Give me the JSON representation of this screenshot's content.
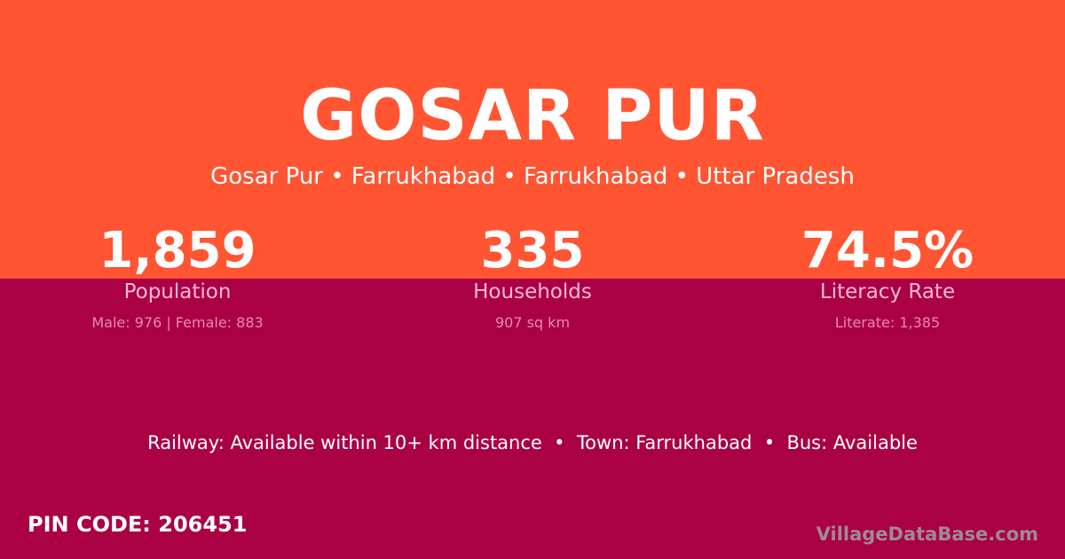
{
  "colors": {
    "top_background": "#FF5533",
    "bottom_background": "#AA0044"
  },
  "title": "GOSAR PUR",
  "breadcrumb": "Gosar Pur • Farrukhabad • Farrukhabad • Uttar Pradesh",
  "stats": [
    {
      "value": "1,859",
      "label": "Population",
      "detail": "Male: 976 | Female: 883"
    },
    {
      "value": "335",
      "label": "Households",
      "detail": "907 sq km"
    },
    {
      "value": "74.5%",
      "label": "Literacy Rate",
      "detail": "Literate: 1,385"
    }
  ],
  "access": "Railway: Available within 10+ km distance  •  Town: Farrukhabad  •  Bus: Available",
  "pin_code": "PIN CODE: 206451",
  "brand": "VillageDataBase.com"
}
